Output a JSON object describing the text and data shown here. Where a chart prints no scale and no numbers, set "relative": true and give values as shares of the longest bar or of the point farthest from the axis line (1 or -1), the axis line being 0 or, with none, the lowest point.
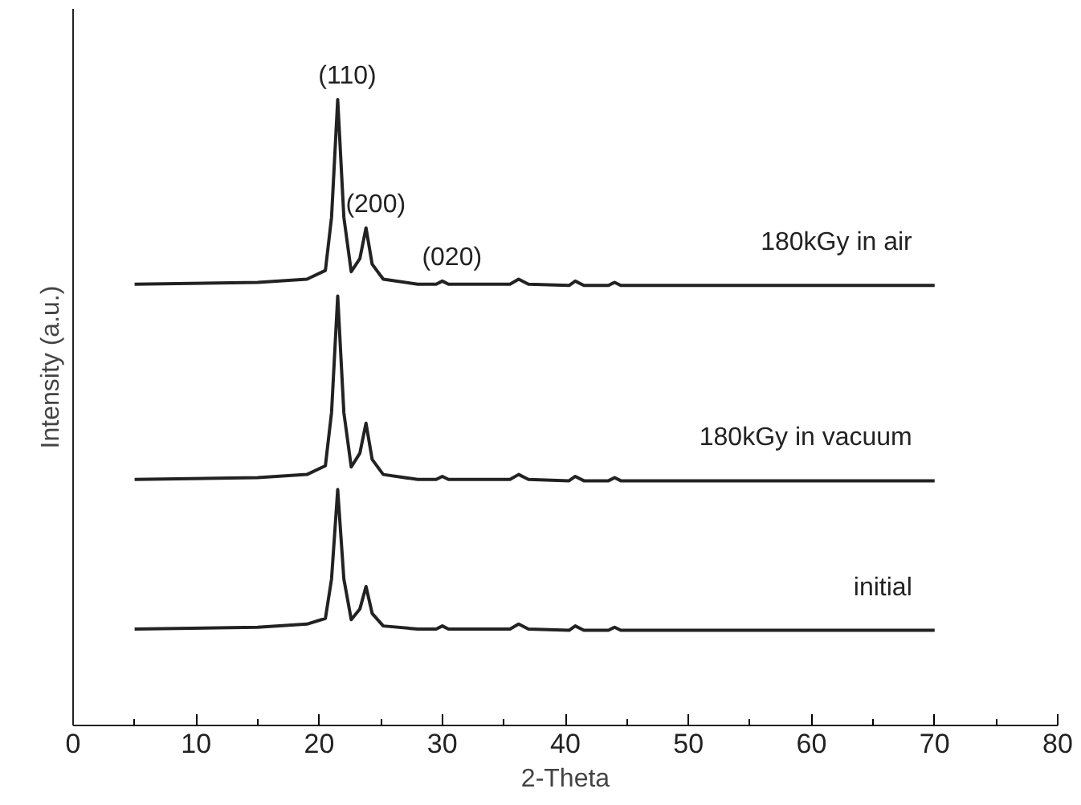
{
  "chart_data": {
    "type": "line",
    "xlabel": "2-Theta",
    "ylabel": "Intensity (a.u.)",
    "relative": true,
    "xlim": [
      0,
      80
    ],
    "xticks": [
      0,
      10,
      20,
      30,
      40,
      50,
      60,
      70,
      80
    ],
    "grid": false,
    "marker": "none",
    "line_style": "solid",
    "tick_labels": "x",
    "x": [
      5,
      15,
      19,
      20.5,
      21.0,
      21.5,
      22.0,
      22.6,
      23.3,
      23.8,
      24.3,
      25.2,
      28,
      29.5,
      30,
      30.5,
      35.5,
      36.2,
      37,
      40.3,
      40.8,
      41.5,
      43.5,
      44,
      44.5,
      70
    ],
    "series": [
      {
        "name": "180kGy in air",
        "color": "#222222",
        "values": [
          0.705,
          0.708,
          0.713,
          0.727,
          0.812,
          1.0,
          0.812,
          0.725,
          0.746,
          0.795,
          0.737,
          0.713,
          0.705,
          0.705,
          0.71,
          0.705,
          0.705,
          0.713,
          0.705,
          0.703,
          0.71,
          0.703,
          0.703,
          0.708,
          0.703,
          0.703
        ]
      },
      {
        "name": "180kGy in vacuum",
        "color": "#222222",
        "values": [
          0.393,
          0.396,
          0.401,
          0.415,
          0.5,
          0.686,
          0.5,
          0.413,
          0.435,
          0.483,
          0.425,
          0.401,
          0.393,
          0.393,
          0.398,
          0.393,
          0.393,
          0.401,
          0.393,
          0.391,
          0.398,
          0.391,
          0.391,
          0.396,
          0.391,
          0.391
        ]
      },
      {
        "name": "initial",
        "color": "#222222",
        "values": [
          0.154,
          0.157,
          0.162,
          0.171,
          0.234,
          0.377,
          0.234,
          0.169,
          0.186,
          0.222,
          0.179,
          0.159,
          0.154,
          0.154,
          0.159,
          0.154,
          0.154,
          0.162,
          0.154,
          0.152,
          0.159,
          0.152,
          0.152,
          0.157,
          0.152,
          0.152
        ]
      }
    ],
    "annotations": [
      {
        "text": "(110)",
        "x": 21.5,
        "y": 1.0
      },
      {
        "text": "(200)",
        "x": 23.8,
        "y": 0.795
      },
      {
        "text": "(020)",
        "x": 30,
        "y": 0.71
      }
    ]
  }
}
